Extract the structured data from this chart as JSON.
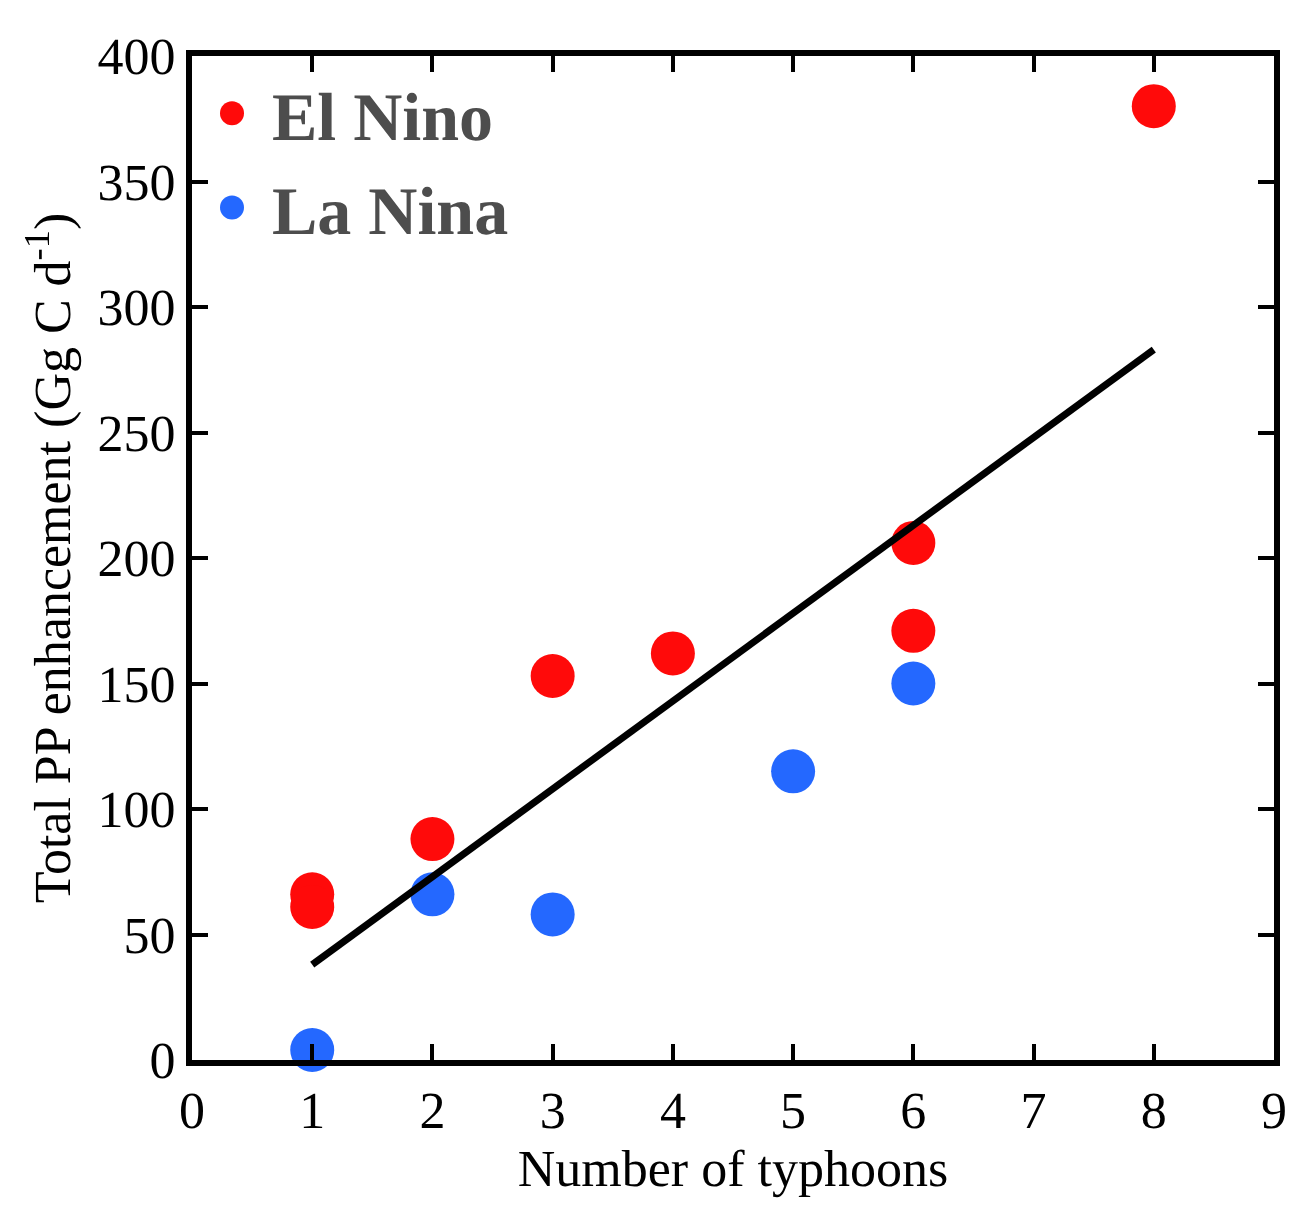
{
  "chart_data": {
    "type": "scatter",
    "xlabel": "Number of typhoons",
    "ylabel": "Total PP enhancement (Gg C d$^{-1}$)",
    "xlim": [
      0,
      9
    ],
    "xticks": [
      0,
      1,
      2,
      3,
      4,
      5,
      6,
      7,
      8,
      9
    ],
    "ylim": [
      0,
      400
    ],
    "yticks": [
      0,
      50,
      100,
      150,
      200,
      250,
      300,
      350,
      400
    ],
    "grid": false,
    "legend": "top left",
    "marker": "circle",
    "series": [
      {
        "name": "El Nino",
        "color": "#ff0a0a",
        "x": [
          1,
          1,
          2,
          3,
          4,
          6,
          6,
          8
        ],
        "values": [
          66,
          61,
          88,
          153,
          162,
          206,
          171,
          380
        ]
      },
      {
        "name": "La Nina",
        "color": "#2468ff",
        "x": [
          1,
          2,
          3,
          5,
          6
        ],
        "values": [
          4,
          66,
          58,
          115,
          150
        ]
      },
      {
        "type": "line",
        "color": "#000000",
        "marker": "none",
        "x": [
          1,
          8
        ],
        "values": [
          38,
          283
        ]
      }
    ]
  }
}
